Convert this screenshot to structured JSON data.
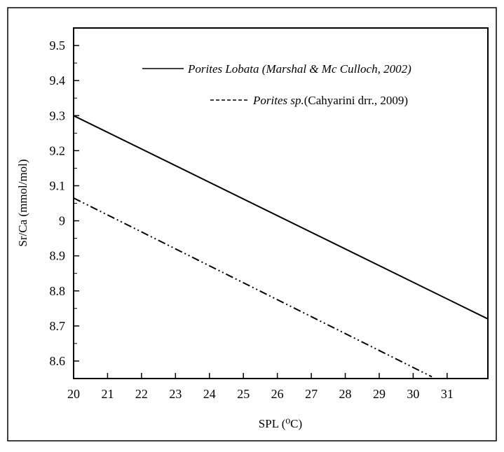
{
  "chart_data": {
    "type": "line",
    "title": "",
    "xlabel": "SPL (⁰C)",
    "ylabel": "Sr/Ca (mmol/mol)",
    "xlim": [
      20,
      32.2
    ],
    "ylim": [
      8.55,
      9.55
    ],
    "x_ticks": [
      20,
      21,
      22,
      23,
      24,
      25,
      26,
      27,
      28,
      29,
      30,
      31
    ],
    "x_tick_labels": [
      "20",
      "21",
      "22",
      "23",
      "24",
      "25",
      "26",
      "27",
      "28",
      "29",
      "30",
      "31"
    ],
    "y_ticks": [
      8.6,
      8.7,
      8.8,
      8.9,
      9.0,
      9.1,
      9.2,
      9.3,
      9.4,
      9.5
    ],
    "y_tick_labels": [
      "8.6",
      "8.7",
      "8.8",
      "8.9",
      "9",
      "9.1",
      "9.2",
      "9.3",
      "9.4",
      "9.5"
    ],
    "grid": false,
    "legend_position": "top-right",
    "series": [
      {
        "legend_italic": "Porites Lobata (Marshal & Mc Culloch, 2002)",
        "legend_normal": "",
        "style": "solid",
        "points": [
          [
            20,
            9.3
          ],
          [
            32.2,
            8.72
          ]
        ]
      },
      {
        "legend_italic": "Porites sp.",
        "legend_normal": "(Cahyarini drr., 2009)",
        "style": "dash-dot-dot",
        "points": [
          [
            20,
            9.065
          ],
          [
            30.55,
            8.555
          ]
        ]
      }
    ]
  }
}
